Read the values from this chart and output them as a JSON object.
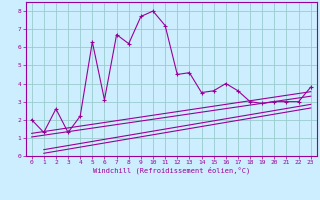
{
  "xlabel": "Windchill (Refroidissement éolien,°C)",
  "bg_color": "#cceeff",
  "line_color": "#990099",
  "grid_color": "#99cccc",
  "xlim": [
    -0.5,
    23.5
  ],
  "ylim": [
    0,
    8.5
  ],
  "xticks": [
    0,
    1,
    2,
    3,
    4,
    5,
    6,
    7,
    8,
    9,
    10,
    11,
    12,
    13,
    14,
    15,
    16,
    17,
    18,
    19,
    20,
    21,
    22,
    23
  ],
  "yticks": [
    0,
    1,
    2,
    3,
    4,
    5,
    6,
    7,
    8
  ],
  "main_x": [
    0,
    1,
    2,
    3,
    4,
    5,
    6,
    7,
    8,
    9,
    10,
    11,
    12,
    13,
    14,
    15,
    16,
    17,
    18,
    19,
    20,
    21,
    22,
    23
  ],
  "main_y": [
    2.0,
    1.3,
    2.6,
    1.3,
    2.2,
    6.3,
    3.1,
    6.7,
    6.2,
    7.7,
    8.0,
    7.2,
    4.5,
    4.6,
    3.5,
    3.6,
    4.0,
    3.6,
    3.0,
    2.9,
    3.0,
    3.0,
    3.0,
    3.8
  ],
  "line1_x": [
    0,
    23
  ],
  "line1_y": [
    1.05,
    3.3
  ],
  "line2_x": [
    0,
    23
  ],
  "line2_y": [
    1.25,
    3.55
  ],
  "line3_x": [
    1,
    23
  ],
  "line3_y": [
    0.35,
    2.85
  ],
  "line4_x": [
    1,
    23
  ],
  "line4_y": [
    0.15,
    2.65
  ]
}
